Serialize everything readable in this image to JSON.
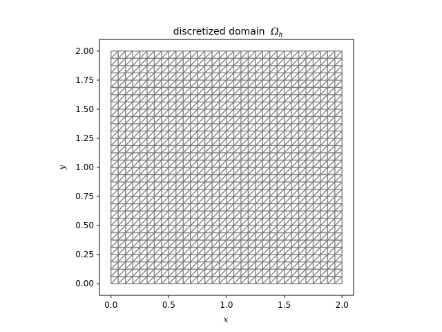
{
  "chart_data": {
    "type": "triangular-mesh",
    "title": "discretized domain",
    "title_symbol": "Ω",
    "title_subscript": "h",
    "xlabel": "x",
    "ylabel": "y",
    "xlim": [
      -0.1,
      2.1
    ],
    "ylim": [
      -0.1,
      2.1
    ],
    "xticks": [
      0.0,
      0.5,
      1.0,
      1.5,
      2.0
    ],
    "xtick_labels": [
      "0.0",
      "0.5",
      "1.0",
      "1.5",
      "2.0"
    ],
    "yticks": [
      0.0,
      0.25,
      0.5,
      0.75,
      1.0,
      1.25,
      1.5,
      1.75,
      2.0
    ],
    "ytick_labels": [
      "0.00",
      "0.25",
      "0.50",
      "0.75",
      "1.00",
      "1.25",
      "1.50",
      "1.75",
      "2.00"
    ],
    "mesh": {
      "x_range": [
        0,
        2
      ],
      "y_range": [
        0,
        2
      ],
      "nx": 32,
      "ny": 32,
      "diagonal": "lower-left to upper-right",
      "color": "#808080"
    },
    "grid": false
  }
}
